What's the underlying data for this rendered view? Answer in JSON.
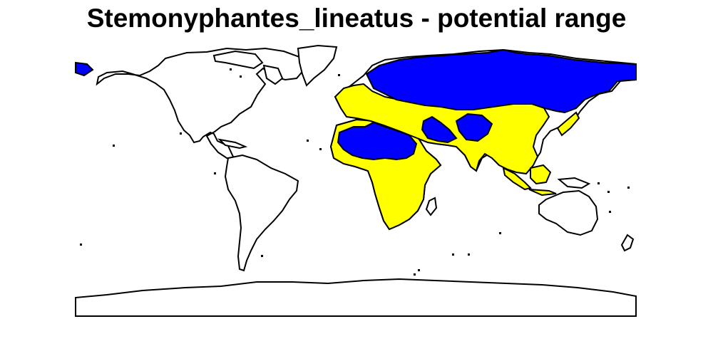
{
  "title": "Stemonyphantes_lineatus - potential range",
  "colors": {
    "background": "#ffffff",
    "land": "#ffffff",
    "outline": "#000000",
    "potential_range": "#ffff00",
    "current_range": "#0000ff"
  }
}
